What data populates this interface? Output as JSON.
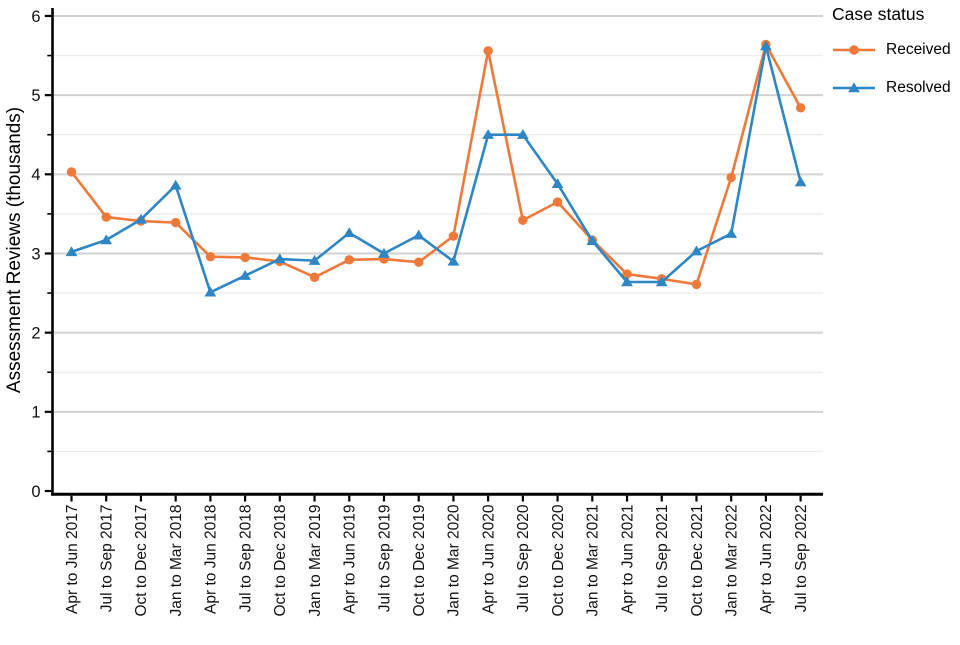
{
  "chart_data": {
    "type": "line",
    "title": "",
    "xlabel": "",
    "ylabel": "Assessment Reviews (thousands)",
    "ylim": [
      0,
      6
    ],
    "yticks": [
      0,
      1,
      2,
      3,
      4,
      5,
      6
    ],
    "minor_grid_step": 0.5,
    "grid": "horizontal, major gray at integers, minor light at halves",
    "legend_title": "Case status",
    "legend_position": "top-right-outside",
    "categories": [
      "Apr to Jun 2017",
      "Jul to Sep 2017",
      "Oct to Dec 2017",
      "Jan to Mar 2018",
      "Apr to Jun 2018",
      "Jul to Sep 2018",
      "Oct to Dec 2018",
      "Jan to Mar 2019",
      "Apr to Jun 2019",
      "Jul to Sep 2019",
      "Oct to Dec 2019",
      "Jan to Mar 2020",
      "Apr to Jun 2020",
      "Jul to Sep 2020",
      "Oct to Dec 2020",
      "Jan to Mar 2021",
      "Apr to Jun 2021",
      "Jul to Sep 2021",
      "Oct to Dec 2021",
      "Jan to Mar 2022",
      "Apr to Jun 2022",
      "Jul to Sep 2022"
    ],
    "series": [
      {
        "name": "Received",
        "marker": "circle",
        "color": "#F0793A",
        "values": [
          4.03,
          3.46,
          3.41,
          3.39,
          2.96,
          2.95,
          2.9,
          2.7,
          2.92,
          2.93,
          2.89,
          3.22,
          5.56,
          3.42,
          3.65,
          3.17,
          2.74,
          2.68,
          2.61,
          3.96,
          5.64,
          4.84
        ]
      },
      {
        "name": "Resolved",
        "marker": "triangle",
        "color": "#2E86C4",
        "values": [
          3.02,
          3.17,
          3.43,
          3.86,
          2.51,
          2.72,
          2.93,
          2.91,
          3.26,
          3.0,
          3.23,
          2.9,
          4.5,
          4.5,
          3.88,
          3.16,
          2.64,
          2.64,
          3.03,
          3.25,
          5.62,
          3.9
        ]
      }
    ]
  }
}
